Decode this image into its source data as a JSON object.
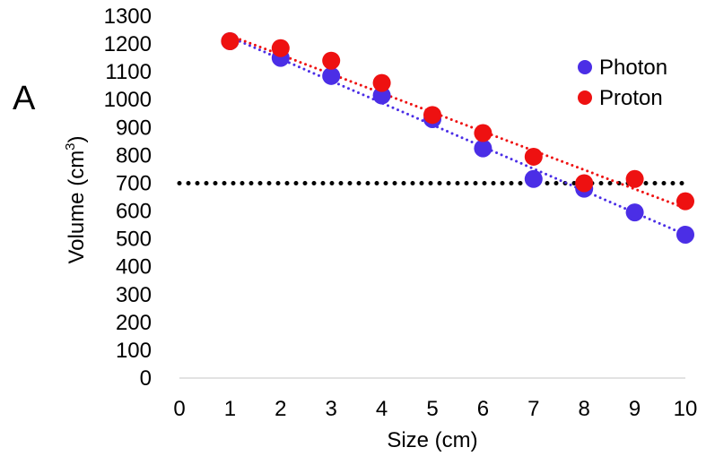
{
  "panel_label": "A",
  "chart_data": {
    "type": "scatter",
    "xlabel": "Size (cm)",
    "ylabel": "Volume  (cm",
    "ylabel_sup": "3",
    "ylabel_close": ")",
    "xlim": [
      0,
      10
    ],
    "ylim": [
      0,
      1300
    ],
    "x_ticks": [
      0,
      1,
      2,
      3,
      4,
      5,
      6,
      7,
      8,
      9,
      10
    ],
    "y_ticks": [
      0,
      100,
      200,
      300,
      400,
      500,
      600,
      700,
      800,
      900,
      1000,
      1100,
      1200,
      1300
    ],
    "grid": false,
    "legend_position": "top-right",
    "reference_line": {
      "y": 700,
      "color": "#000000",
      "style": "dotted"
    },
    "series": [
      {
        "name": "Photon",
        "color": "#4b2ee6",
        "x": [
          1,
          2,
          3,
          4,
          5,
          6,
          7,
          8,
          9,
          10
        ],
        "y": [
          1210,
          1150,
          1085,
          1015,
          930,
          825,
          715,
          680,
          595,
          515
        ],
        "trendline": {
          "from": [
            1,
            1225
          ],
          "to": [
            10,
            515
          ],
          "style": "dotted"
        }
      },
      {
        "name": "Proton",
        "color": "#ee1111",
        "x": [
          1,
          2,
          3,
          4,
          5,
          6,
          7,
          8,
          9,
          10
        ],
        "y": [
          1210,
          1185,
          1140,
          1060,
          945,
          880,
          795,
          700,
          715,
          635
        ],
        "trendline": {
          "from": [
            1,
            1230
          ],
          "to": [
            10,
            610
          ],
          "style": "dotted"
        }
      }
    ]
  }
}
